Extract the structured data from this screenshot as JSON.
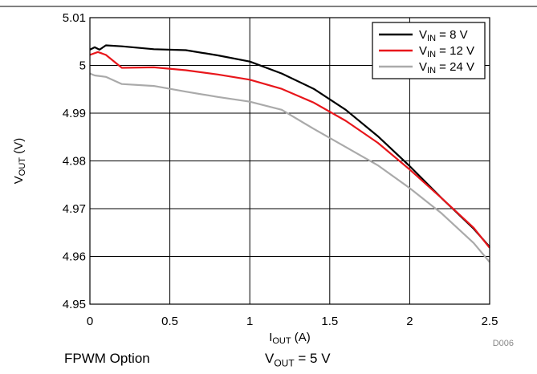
{
  "chart_data": {
    "type": "line",
    "xlabel": {
      "main": "I",
      "sub": "OUT",
      "unit": " (A)"
    },
    "ylabel": {
      "main": "V",
      "sub": "OUT",
      "unit": " (V)"
    },
    "xlim": [
      0,
      2.5
    ],
    "ylim": [
      4.95,
      5.01
    ],
    "xticks": [
      0,
      0.5,
      1,
      1.5,
      2,
      2.5
    ],
    "xtick_labels": [
      "0",
      "0.5",
      "1",
      "1.5",
      "2",
      "2.5"
    ],
    "yticks": [
      4.95,
      4.96,
      4.97,
      4.98,
      4.99,
      5,
      5.01
    ],
    "ytick_labels": [
      "4.95",
      "4.96",
      "4.97",
      "4.98",
      "4.99",
      "5",
      "5.01"
    ],
    "grid": true,
    "legend_position": "top-right",
    "code": "D006",
    "series": [
      {
        "name": "V_IN = 8 V",
        "label_main": "V",
        "label_sub": "IN",
        "label_rest": " = 8 V",
        "color": "#000000",
        "x": [
          0,
          0.03,
          0.06,
          0.1,
          0.2,
          0.4,
          0.6,
          0.8,
          1.0,
          1.2,
          1.4,
          1.6,
          1.8,
          2.0,
          2.2,
          2.4,
          2.5
        ],
        "y": [
          5.0033,
          5.0038,
          5.0033,
          5.0042,
          5.004,
          5.0034,
          5.0032,
          5.0021,
          5.0008,
          4.9983,
          4.9951,
          4.9907,
          4.9852,
          4.9789,
          4.9722,
          4.9658,
          4.962
        ]
      },
      {
        "name": "V_IN = 12 V",
        "label_main": "V",
        "label_sub": "IN",
        "label_rest": " = 12 V",
        "color": "#e8161b",
        "x": [
          0,
          0.05,
          0.1,
          0.2,
          0.4,
          0.6,
          0.8,
          1.0,
          1.2,
          1.4,
          1.6,
          1.8,
          2.0,
          2.2,
          2.4,
          2.5
        ],
        "y": [
          5.0022,
          5.0028,
          5.0022,
          4.9995,
          4.9996,
          4.999,
          4.9981,
          4.997,
          4.9951,
          4.9922,
          4.9884,
          4.9838,
          4.9782,
          4.9722,
          4.966,
          4.9618
        ]
      },
      {
        "name": "V_IN = 24 V",
        "label_main": "V",
        "label_sub": "IN",
        "label_rest": " = 24 V",
        "color": "#aaaaaa",
        "x": [
          0,
          0.03,
          0.1,
          0.2,
          0.4,
          0.6,
          0.8,
          1.0,
          1.2,
          1.4,
          1.6,
          1.8,
          2.0,
          2.2,
          2.4,
          2.5
        ],
        "y": [
          4.9983,
          4.9979,
          4.9976,
          4.9961,
          4.9957,
          4.9945,
          4.9934,
          4.9924,
          4.9907,
          4.9867,
          4.9829,
          4.9791,
          4.9743,
          4.969,
          4.9628,
          4.9588
        ]
      }
    ]
  },
  "captions": {
    "left": "FPWM Option",
    "right_main": "V",
    "right_sub": "OUT",
    "right_rest": " = 5 V"
  }
}
